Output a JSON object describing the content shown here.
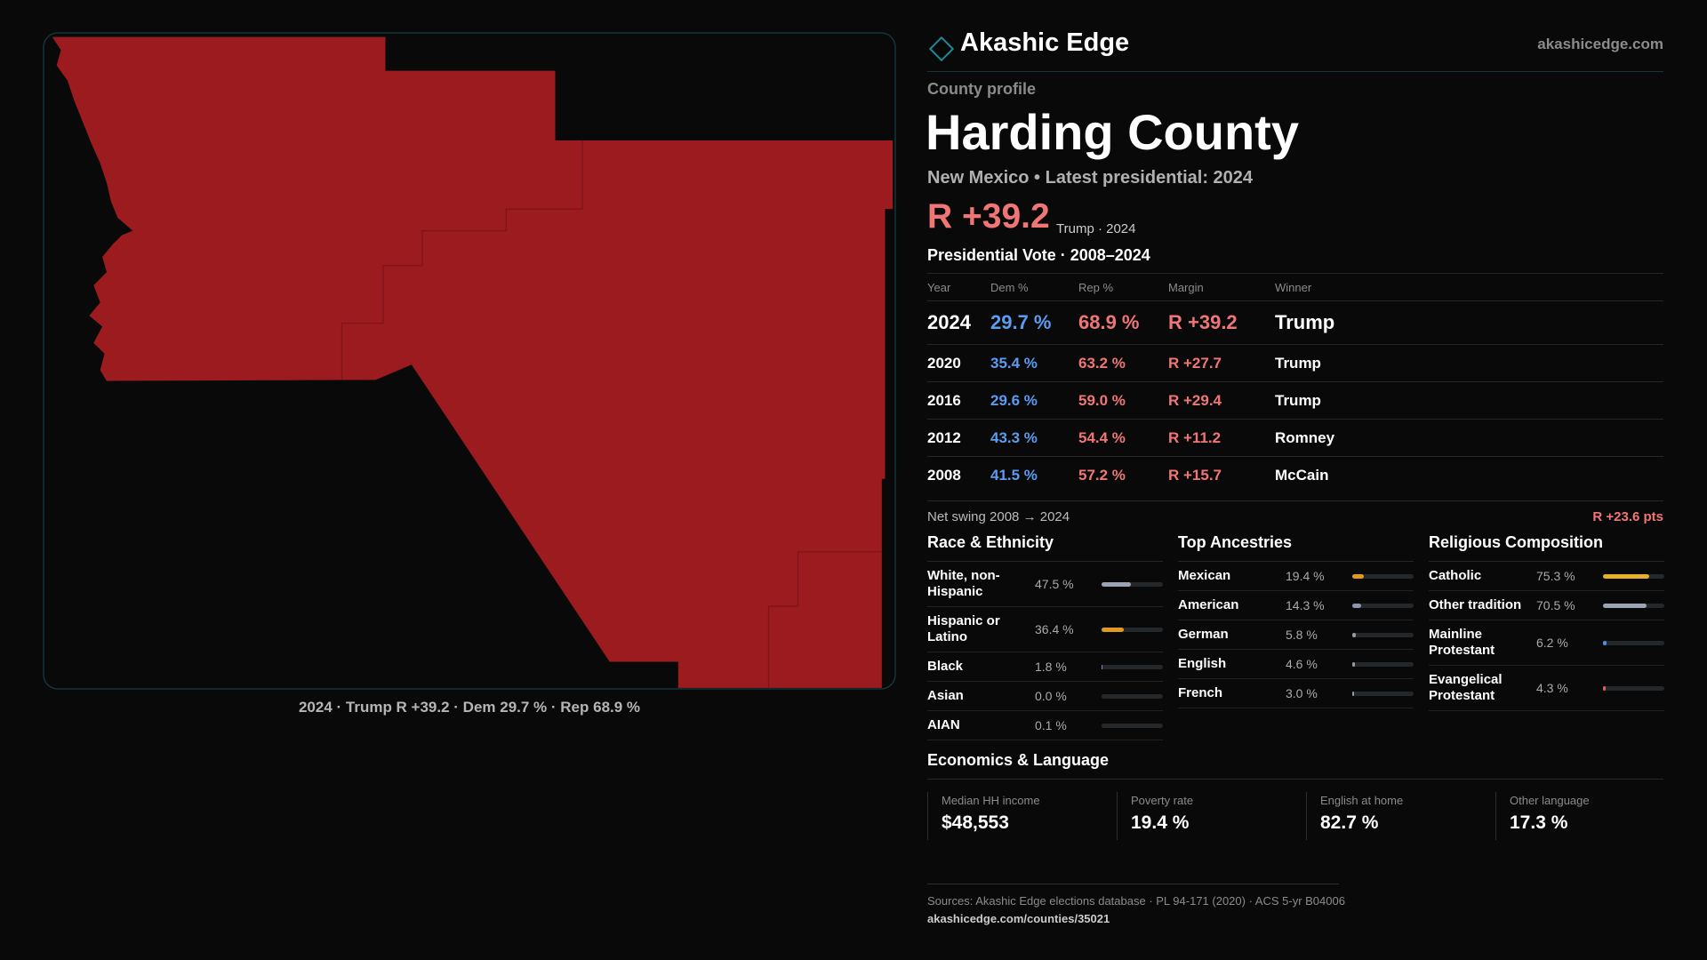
{
  "header": {
    "brand": "Akashic Edge",
    "site": "akashicedge.com"
  },
  "profile": {
    "kicker": "County profile",
    "title": "Harding County",
    "subtitle": "New Mexico • Latest presidential: 2024",
    "margin": "R +39.2",
    "margin_note": "Trump · 2024"
  },
  "map": {
    "caption": "2024 · Trump R +39.2 · Dem 29.7 % · Rep 68.9 %"
  },
  "votes": {
    "title": "Presidential Vote · 2008–2024",
    "columns": [
      "Year",
      "Dem %",
      "Rep %",
      "Margin",
      "Winner"
    ],
    "rows": [
      [
        "2024",
        "29.7 %",
        "68.9 %",
        "R +39.2",
        "Trump"
      ],
      [
        "2020",
        "35.4 %",
        "63.2 %",
        "R +27.7",
        "Trump"
      ],
      [
        "2016",
        "29.6 %",
        "59.0 %",
        "R +29.4",
        "Trump"
      ],
      [
        "2012",
        "43.3 %",
        "54.4 %",
        "R +11.2",
        "Romney"
      ],
      [
        "2008",
        "41.5 %",
        "57.2 %",
        "R +15.7",
        "McCain"
      ]
    ]
  },
  "swing": {
    "label": "Net swing 2008 → 2024",
    "value": "R +23.6 pts"
  },
  "sections": [
    {
      "title": "Race & Ethnicity",
      "xlim": [
        0,
        100
      ],
      "rows": [
        {
          "name": "White, non-Hispanic",
          "value": 47.5,
          "label": "47.5 %",
          "color": "#9ba4b4"
        },
        {
          "name": "Hispanic or Latino",
          "value": 36.4,
          "label": "36.4 %",
          "color": "#e09a1e"
        },
        {
          "name": "Black",
          "value": 1.8,
          "label": "1.8 %",
          "color": "#8f86d8"
        },
        {
          "name": "Asian",
          "value": 0.0,
          "label": "0.0 %",
          "color": "#5ba0d8"
        },
        {
          "name": "AIAN",
          "value": 0.1,
          "label": "0.1 %",
          "color": "#5bbf8a"
        }
      ]
    },
    {
      "title": "Top Ancestries",
      "xlim": [
        0,
        100
      ],
      "rows": [
        {
          "name": "Mexican",
          "value": 19.4,
          "label": "19.4 %",
          "color": "#e09a1e"
        },
        {
          "name": "American",
          "value": 14.3,
          "label": "14.3 %",
          "color": "#8a96b0"
        },
        {
          "name": "German",
          "value": 5.8,
          "label": "5.8 %",
          "color": "#9a9a9a"
        },
        {
          "name": "English",
          "value": 4.6,
          "label": "4.6 %",
          "color": "#9a9a9a"
        },
        {
          "name": "French",
          "value": 3.0,
          "label": "3.0 %",
          "color": "#9a9a9a"
        }
      ]
    },
    {
      "title": "Religious Composition",
      "xlim": [
        0,
        100
      ],
      "rows": [
        {
          "name": "Catholic",
          "value": 75.3,
          "label": "75.3 %",
          "color": "#e6b12a"
        },
        {
          "name": "Other tradition",
          "value": 70.5,
          "label": "70.5 %",
          "color": "#9ba4b4"
        },
        {
          "name": "Mainline Protestant",
          "value": 6.2,
          "label": "6.2 %",
          "color": "#4a8fe0"
        },
        {
          "name": "Evangelical Protestant",
          "value": 4.3,
          "label": "4.3 %",
          "color": "#e0605a"
        }
      ]
    }
  ],
  "economics": {
    "title": "Economics & Language",
    "items": [
      {
        "label": "Median HH income",
        "value": "$48,553"
      },
      {
        "label": "Poverty rate",
        "value": "19.4 %"
      },
      {
        "label": "English at home",
        "value": "82.7 %"
      },
      {
        "label": "Other language",
        "value": "17.3 %"
      }
    ]
  },
  "footer": {
    "sources": "Sources: Akashic Edge elections database · PL 94-171 (2020) · ACS 5-yr B04006",
    "url": "akashicedge.com/counties/35021"
  }
}
